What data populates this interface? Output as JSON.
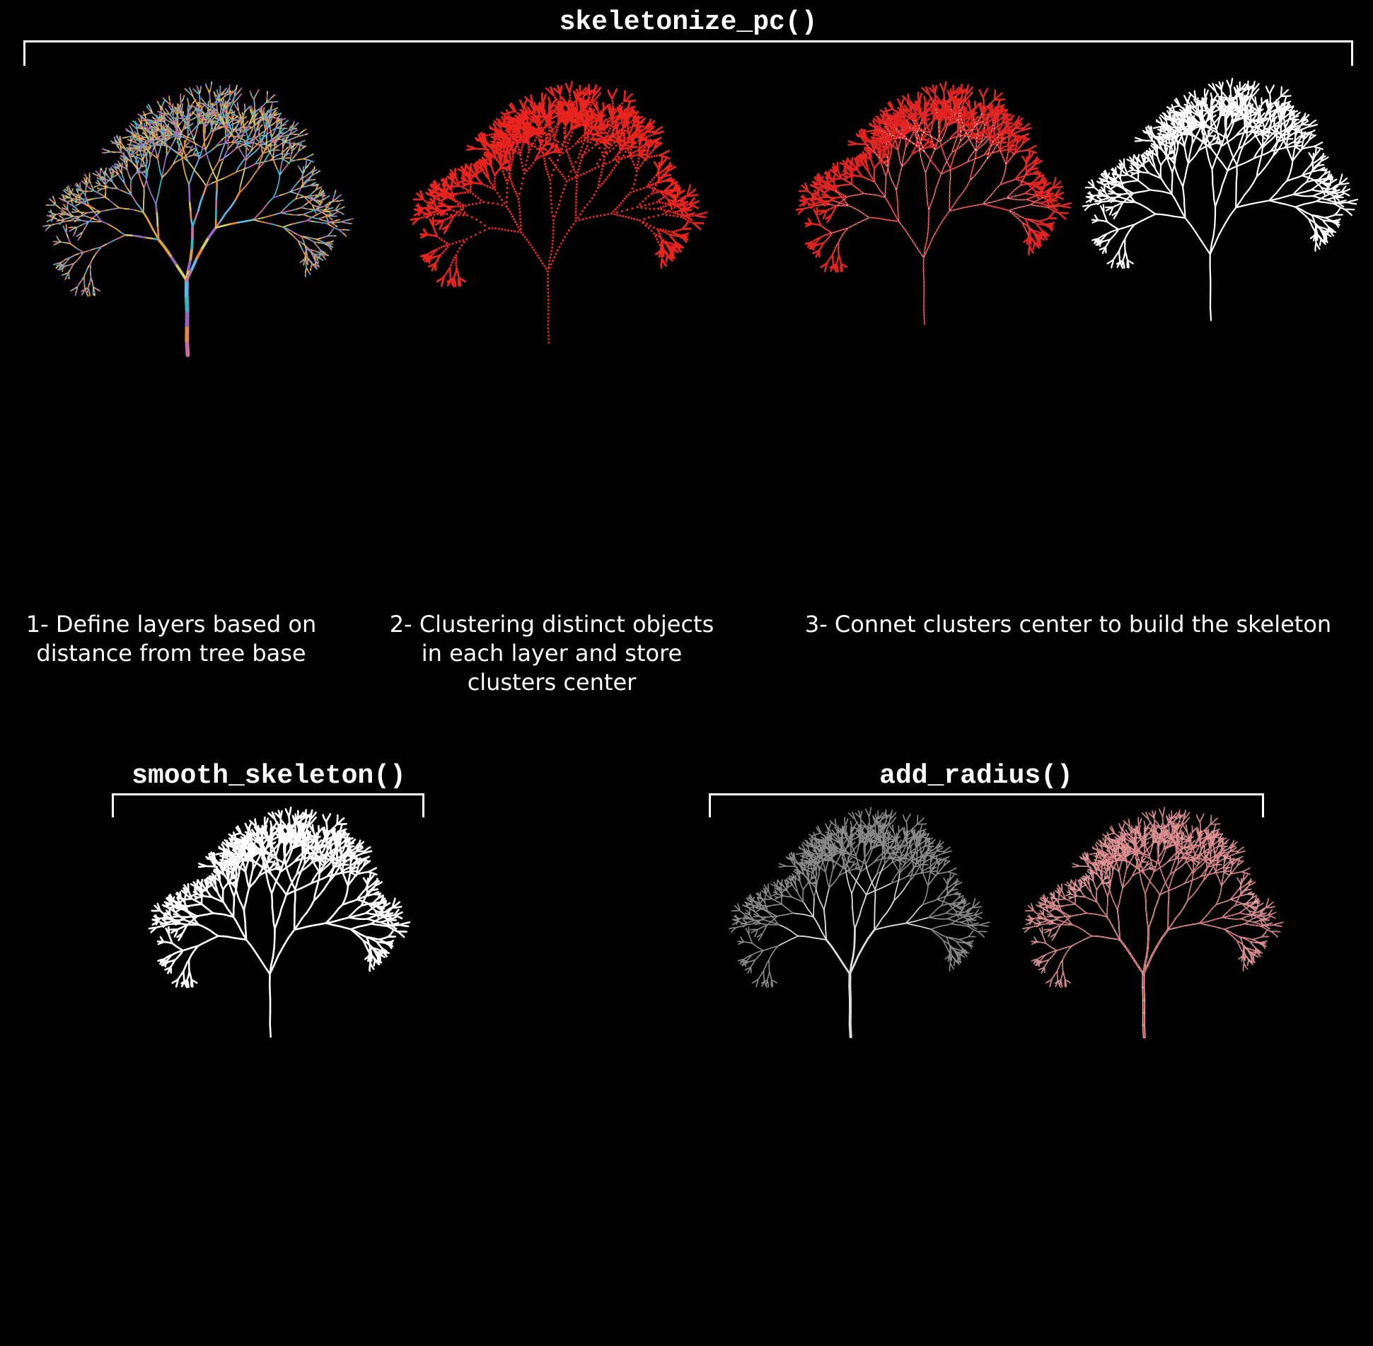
{
  "panels": {
    "skeletonize": {
      "title": "skeletonize_pc()",
      "steps": [
        {
          "lines": [
            "1- Define layers based on",
            "distance from tree base"
          ]
        },
        {
          "lines": [
            "2- Clustering distinct objects",
            "in each layer and store",
            "clusters center"
          ]
        },
        {
          "lines": [
            "3- Connet clusters center to build the skeleton"
          ]
        }
      ]
    },
    "smooth": {
      "title": "smooth_skeleton()"
    },
    "radius": {
      "title": "add_radius()"
    }
  },
  "trees": [
    {
      "style": "layers",
      "colors": [
        "#31b7c4",
        "#e0a437",
        "#9a63bd",
        "#d6d05a",
        "#e8883b",
        "#5bb8e6",
        "#c86aa3"
      ]
    },
    {
      "style": "clusters",
      "colors": [
        "#e8241f"
      ]
    },
    {
      "style": "clusters-skeleton",
      "colors": [
        "#e02422",
        "#ffffff"
      ]
    },
    {
      "style": "skeleton",
      "colors": [
        "#ffffff"
      ]
    },
    {
      "style": "smooth",
      "colors": [
        "#ffffff"
      ]
    },
    {
      "style": "mesh",
      "colors": [
        "#dcdcdc",
        "#8a8a8a"
      ]
    },
    {
      "style": "mesh-radius",
      "colors": [
        "#e11b1f",
        "#dcdcdc"
      ]
    }
  ]
}
